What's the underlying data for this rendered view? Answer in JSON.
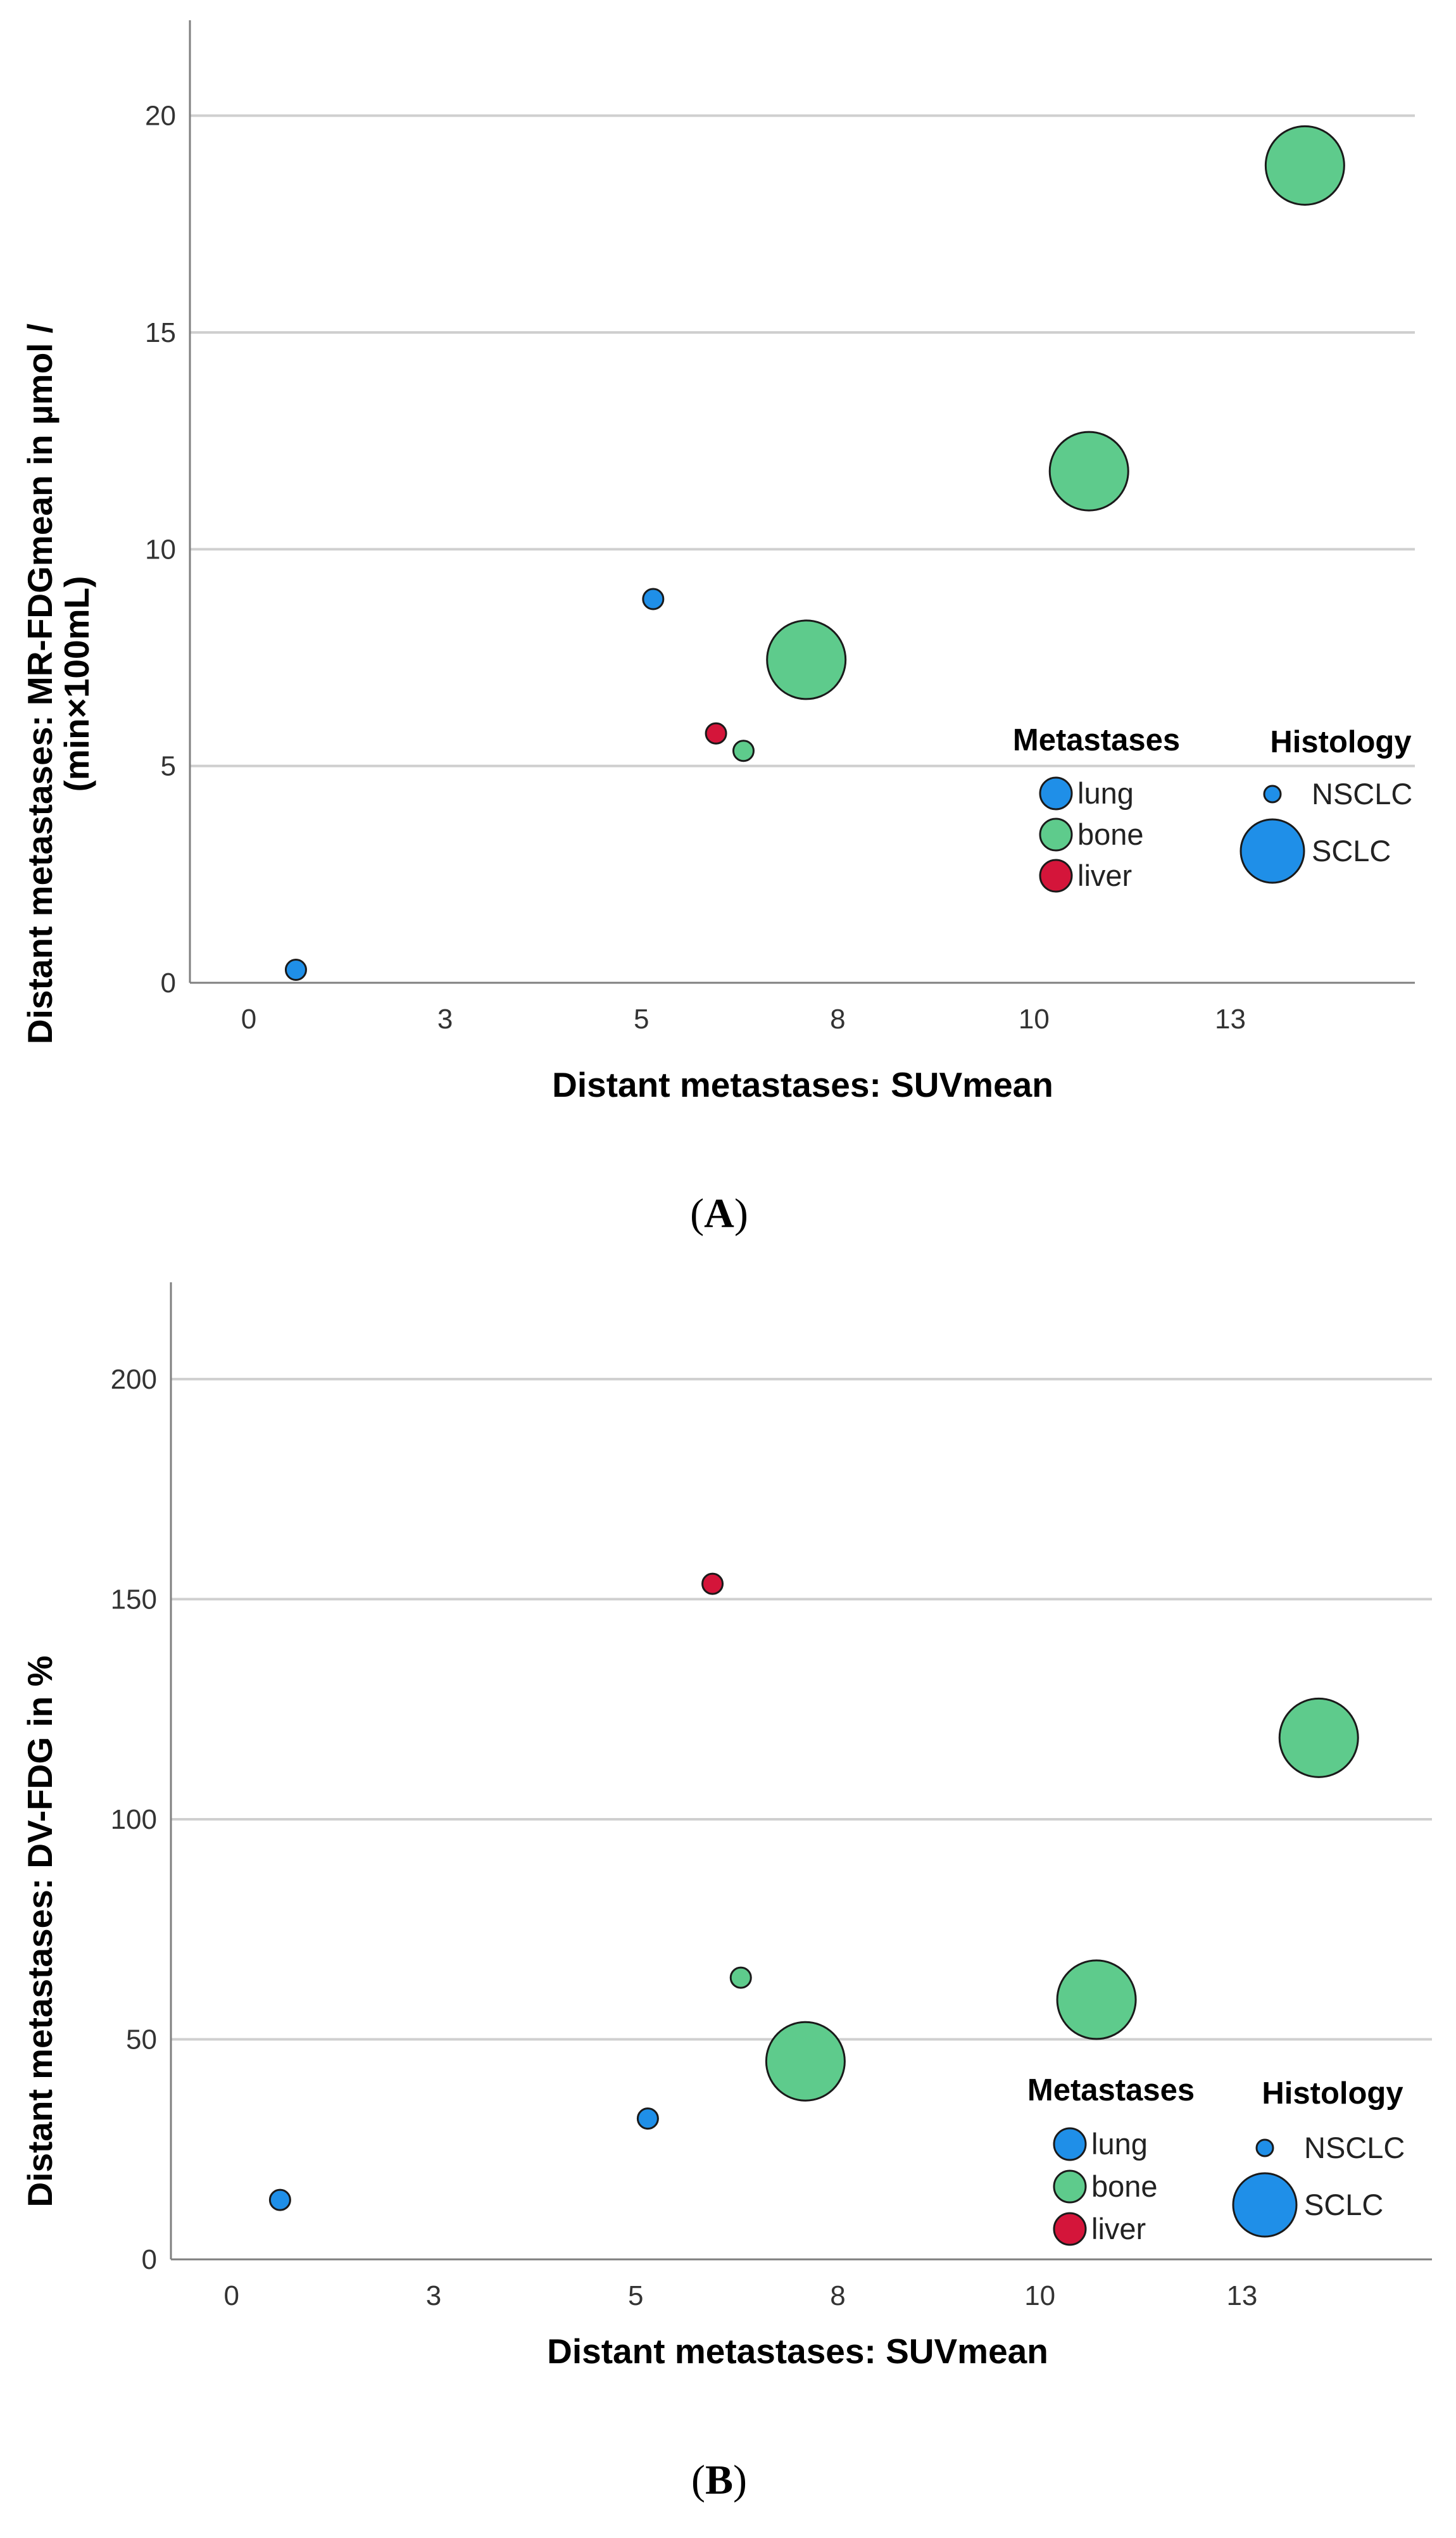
{
  "colors": {
    "lung": "#1f8fe8",
    "bone": "#5ecb8c",
    "liver": "#d4153a"
  },
  "chart_data": [
    {
      "panel": "A",
      "type": "scatter",
      "panel_label_open": "(",
      "panel_label_letter": "A",
      "panel_label_close": ")",
      "xlabel": "Distant metastases: SUVmean",
      "ylabel_line1": "Distant metastases: MR-FDGmean in µmol /",
      "ylabel_line2": "(min×100mL)",
      "x_ticks": [
        {
          "value": 0,
          "label": "0"
        },
        {
          "value": 2.5,
          "label": "3"
        },
        {
          "value": 5,
          "label": "5"
        },
        {
          "value": 7.5,
          "label": "8"
        },
        {
          "value": 10,
          "label": "10"
        },
        {
          "value": 12.5,
          "label": "13"
        }
      ],
      "y_ticks": [
        {
          "value": 0,
          "label": "0"
        },
        {
          "value": 5,
          "label": "5"
        },
        {
          "value": 10,
          "label": "10"
        },
        {
          "value": 15,
          "label": "15"
        },
        {
          "value": 20,
          "label": "20"
        }
      ],
      "xlim": [
        -0.75,
        14.85
      ],
      "ylim": [
        0,
        22.2
      ],
      "grid": true,
      "points": [
        {
          "x": 0.6,
          "y": 0.3,
          "metastases": "lung",
          "histology": "NSCLC"
        },
        {
          "x": 5.15,
          "y": 8.85,
          "metastases": "lung",
          "histology": "NSCLC"
        },
        {
          "x": 5.95,
          "y": 5.75,
          "metastases": "liver",
          "histology": "NSCLC"
        },
        {
          "x": 6.3,
          "y": 5.35,
          "metastases": "bone",
          "histology": "NSCLC"
        },
        {
          "x": 7.1,
          "y": 7.45,
          "metastases": "bone",
          "histology": "SCLC"
        },
        {
          "x": 10.7,
          "y": 11.8,
          "metastases": "bone",
          "histology": "SCLC"
        },
        {
          "x": 13.45,
          "y": 18.85,
          "metastases": "bone",
          "histology": "SCLC"
        }
      ],
      "legend": {
        "metastases_title": "Metastases",
        "metastases_items": [
          "lung",
          "bone",
          "liver"
        ],
        "histology_title": "Histology",
        "histology_items": [
          "NSCLC",
          "SCLC"
        ]
      }
    },
    {
      "panel": "B",
      "type": "scatter",
      "panel_label_open": "(",
      "panel_label_letter": "B",
      "panel_label_close": ")",
      "xlabel": "Distant metastases: SUVmean",
      "ylabel_line1": "Distant metastases: DV-FDG in %",
      "ylabel_line2": "",
      "x_ticks": [
        {
          "value": 0,
          "label": "0"
        },
        {
          "value": 2.5,
          "label": "3"
        },
        {
          "value": 5,
          "label": "5"
        },
        {
          "value": 7.5,
          "label": "8"
        },
        {
          "value": 10,
          "label": "10"
        },
        {
          "value": 12.5,
          "label": "13"
        }
      ],
      "y_ticks": [
        {
          "value": 0,
          "label": "0"
        },
        {
          "value": 50,
          "label": "50"
        },
        {
          "value": 100,
          "label": "100"
        },
        {
          "value": 150,
          "label": "150"
        },
        {
          "value": 200,
          "label": "200"
        }
      ],
      "xlim": [
        -0.75,
        14.85
      ],
      "ylim": [
        0,
        222
      ],
      "grid": true,
      "points": [
        {
          "x": 0.6,
          "y": 13.5,
          "metastases": "lung",
          "histology": "NSCLC"
        },
        {
          "x": 5.15,
          "y": 32,
          "metastases": "lung",
          "histology": "NSCLC"
        },
        {
          "x": 5.95,
          "y": 153.5,
          "metastases": "liver",
          "histology": "NSCLC"
        },
        {
          "x": 6.3,
          "y": 64,
          "metastases": "bone",
          "histology": "NSCLC"
        },
        {
          "x": 7.1,
          "y": 45,
          "metastases": "bone",
          "histology": "SCLC"
        },
        {
          "x": 10.7,
          "y": 59,
          "metastases": "bone",
          "histology": "SCLC"
        },
        {
          "x": 13.45,
          "y": 118.5,
          "metastases": "bone",
          "histology": "SCLC"
        }
      ],
      "legend": {
        "metastases_title": "Metastases",
        "metastases_items": [
          "lung",
          "bone",
          "liver"
        ],
        "histology_title": "Histology",
        "histology_items": [
          "NSCLC",
          "SCLC"
        ]
      }
    }
  ]
}
